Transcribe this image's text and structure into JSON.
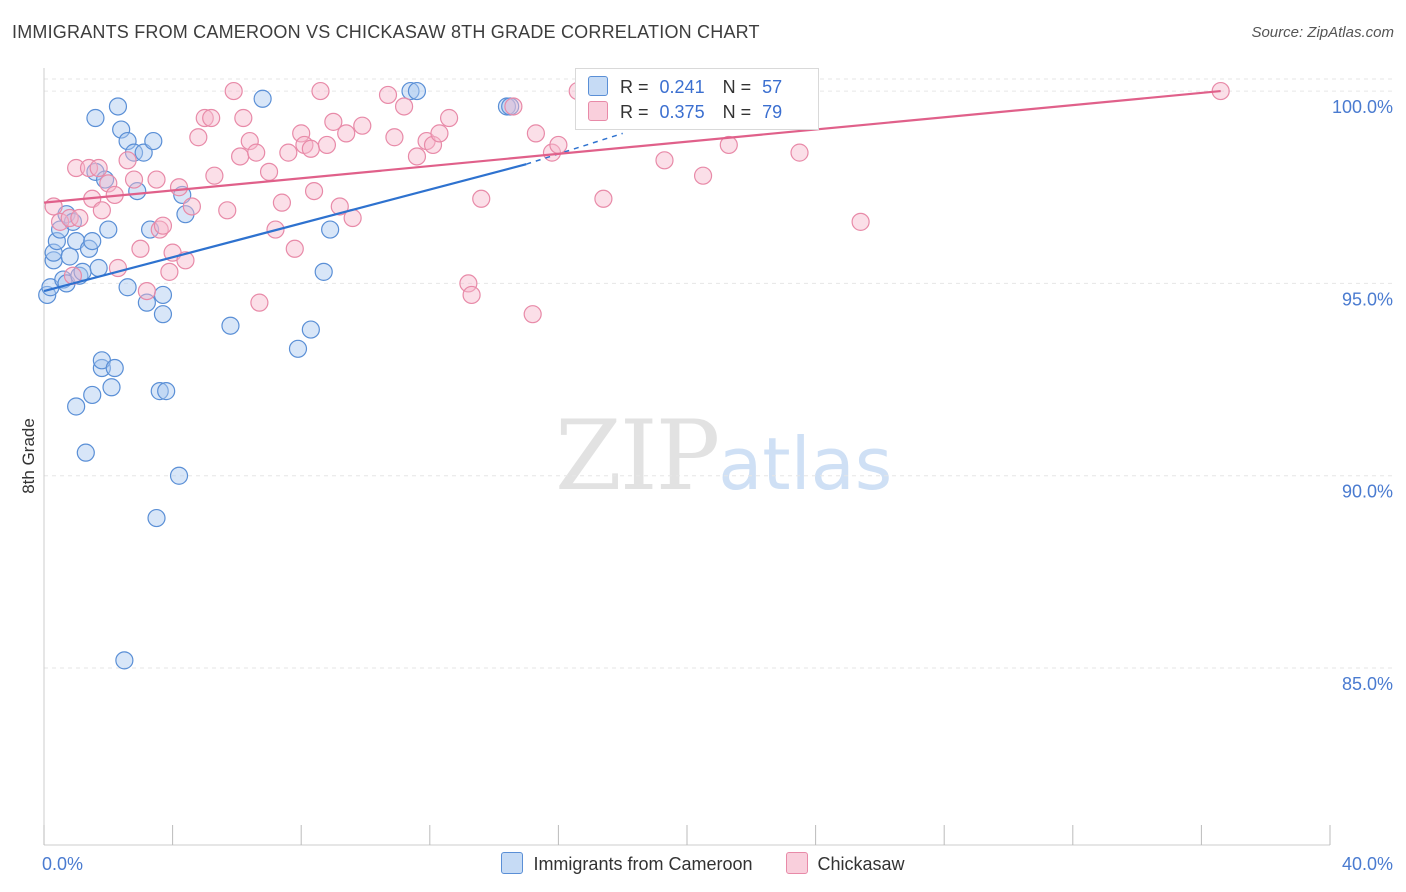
{
  "title": "IMMIGRANTS FROM CAMEROON VS CHICKASAW 8TH GRADE CORRELATION CHART",
  "source": "Source: ZipAtlas.com",
  "watermark": {
    "zip": "ZIP",
    "atlas": "atlas"
  },
  "legend": {
    "r_label": "R =",
    "n_label": "N =",
    "series": [
      {
        "name": "Immigrants from Cameroon",
        "r": "0.241",
        "n": "57"
      },
      {
        "name": "Chickasaw",
        "r": "0.375",
        "n": "79"
      }
    ]
  },
  "colors": {
    "blue_fill": "#a8c8f0",
    "blue_stroke": "#5a8fd6",
    "blue_line": "#2e72cf",
    "pink_fill": "#f6b8cc",
    "pink_stroke": "#e88aa8",
    "pink_line": "#e0608a",
    "grid": "#e6e6e6",
    "tick_text": "#4a7bd0"
  },
  "chart_data": {
    "type": "scatter",
    "title": "IMMIGRANTS FROM CAMEROON VS CHICKASAW 8TH GRADE CORRELATION CHART",
    "xlabel": "",
    "ylabel": "8th Grade",
    "xlim": [
      0,
      40
    ],
    "ylim": [
      80.4,
      100.6
    ],
    "x_tick_labels": [
      "0.0%",
      "40.0%"
    ],
    "y_ticks": [
      85,
      90,
      95,
      100
    ],
    "y_tick_labels": [
      "85.0%",
      "90.0%",
      "95.0%",
      "100.0%"
    ],
    "grid": true,
    "legend_position": "top-center",
    "series": [
      {
        "name": "Immigrants from Cameroon",
        "color": "blue",
        "trend": {
          "x": [
            0,
            15
          ],
          "y": [
            94.8,
            98.1
          ],
          "dashed_to": [
            18.0,
            98.9
          ]
        },
        "points": [
          [
            0.1,
            94.7
          ],
          [
            0.2,
            94.9
          ],
          [
            0.3,
            95.6
          ],
          [
            0.3,
            95.8
          ],
          [
            0.4,
            96.1
          ],
          [
            0.5,
            96.4
          ],
          [
            0.6,
            95.1
          ],
          [
            0.7,
            96.8
          ],
          [
            0.7,
            95.0
          ],
          [
            0.8,
            95.7
          ],
          [
            0.9,
            96.6
          ],
          [
            1.0,
            96.1
          ],
          [
            1.1,
            95.2
          ],
          [
            1.2,
            95.3
          ],
          [
            1.0,
            91.8
          ],
          [
            1.3,
            90.6
          ],
          [
            1.4,
            95.9
          ],
          [
            1.5,
            92.1
          ],
          [
            1.5,
            96.1
          ],
          [
            1.6,
            97.9
          ],
          [
            1.6,
            99.3
          ],
          [
            1.8,
            92.8
          ],
          [
            1.8,
            93.0
          ],
          [
            1.9,
            97.7
          ],
          [
            2.0,
            96.4
          ],
          [
            2.1,
            92.3
          ],
          [
            2.2,
            92.8
          ],
          [
            2.3,
            99.6
          ],
          [
            2.4,
            99.0
          ],
          [
            2.6,
            94.9
          ],
          [
            2.6,
            98.7
          ],
          [
            2.8,
            98.4
          ],
          [
            2.9,
            97.4
          ],
          [
            3.1,
            98.4
          ],
          [
            3.2,
            94.5
          ],
          [
            3.3,
            96.4
          ],
          [
            3.4,
            98.7
          ],
          [
            3.5,
            88.9
          ],
          [
            3.6,
            92.2
          ],
          [
            3.7,
            94.2
          ],
          [
            3.7,
            94.7
          ],
          [
            3.8,
            92.2
          ],
          [
            4.2,
            90.0
          ],
          [
            4.3,
            97.3
          ],
          [
            4.4,
            96.8
          ],
          [
            5.8,
            93.9
          ],
          [
            6.8,
            99.8
          ],
          [
            7.9,
            93.3
          ],
          [
            8.3,
            93.8
          ],
          [
            8.7,
            95.3
          ],
          [
            8.9,
            96.4
          ],
          [
            11.4,
            100.0
          ],
          [
            11.6,
            100.0
          ],
          [
            14.4,
            99.6
          ],
          [
            14.5,
            99.6
          ],
          [
            2.5,
            85.2
          ],
          [
            1.7,
            95.4
          ]
        ]
      },
      {
        "name": "Chickasaw",
        "color": "pink",
        "trend": {
          "x": [
            0,
            36.6
          ],
          "y": [
            97.1,
            100.0
          ]
        },
        "points": [
          [
            0.3,
            97.0
          ],
          [
            0.5,
            96.6
          ],
          [
            0.8,
            96.7
          ],
          [
            0.9,
            95.2
          ],
          [
            1.0,
            98.0
          ],
          [
            1.1,
            96.7
          ],
          [
            1.4,
            98.0
          ],
          [
            1.5,
            97.2
          ],
          [
            1.7,
            98.0
          ],
          [
            1.8,
            96.9
          ],
          [
            2.0,
            97.6
          ],
          [
            2.2,
            97.3
          ],
          [
            2.3,
            95.4
          ],
          [
            2.6,
            98.2
          ],
          [
            2.8,
            97.7
          ],
          [
            3.0,
            95.9
          ],
          [
            3.2,
            94.8
          ],
          [
            3.5,
            97.7
          ],
          [
            3.6,
            96.4
          ],
          [
            3.7,
            96.5
          ],
          [
            3.9,
            95.3
          ],
          [
            4.0,
            95.8
          ],
          [
            4.2,
            97.5
          ],
          [
            4.4,
            95.6
          ],
          [
            4.6,
            97.0
          ],
          [
            4.8,
            98.8
          ],
          [
            5.0,
            99.3
          ],
          [
            5.2,
            99.3
          ],
          [
            5.3,
            97.8
          ],
          [
            5.7,
            96.9
          ],
          [
            5.9,
            100.0
          ],
          [
            6.1,
            98.3
          ],
          [
            6.2,
            99.3
          ],
          [
            6.4,
            98.7
          ],
          [
            6.6,
            98.4
          ],
          [
            6.7,
            94.5
          ],
          [
            7.0,
            97.9
          ],
          [
            7.2,
            96.4
          ],
          [
            7.4,
            97.1
          ],
          [
            7.6,
            98.4
          ],
          [
            7.8,
            95.9
          ],
          [
            8.0,
            98.9
          ],
          [
            8.1,
            98.6
          ],
          [
            8.3,
            98.5
          ],
          [
            8.4,
            97.4
          ],
          [
            8.6,
            100.0
          ],
          [
            8.8,
            98.6
          ],
          [
            9.0,
            99.2
          ],
          [
            9.2,
            97.0
          ],
          [
            9.4,
            98.9
          ],
          [
            9.6,
            96.7
          ],
          [
            9.9,
            99.1
          ],
          [
            10.7,
            99.9
          ],
          [
            10.9,
            98.8
          ],
          [
            11.2,
            99.6
          ],
          [
            11.6,
            98.3
          ],
          [
            11.9,
            98.7
          ],
          [
            12.1,
            98.6
          ],
          [
            12.3,
            98.9
          ],
          [
            12.6,
            99.3
          ],
          [
            13.2,
            95.0
          ],
          [
            13.3,
            94.7
          ],
          [
            13.6,
            97.2
          ],
          [
            14.6,
            99.6
          ],
          [
            15.2,
            94.2
          ],
          [
            15.3,
            98.9
          ],
          [
            15.8,
            98.4
          ],
          [
            16.0,
            98.6
          ],
          [
            16.6,
            100.0
          ],
          [
            16.8,
            100.0
          ],
          [
            17.4,
            97.2
          ],
          [
            18.5,
            100.0
          ],
          [
            19.3,
            98.2
          ],
          [
            20.5,
            97.8
          ],
          [
            21.3,
            98.6
          ],
          [
            21.9,
            100.0
          ],
          [
            23.5,
            98.4
          ],
          [
            25.4,
            96.6
          ],
          [
            36.6,
            100.0
          ]
        ]
      }
    ]
  }
}
